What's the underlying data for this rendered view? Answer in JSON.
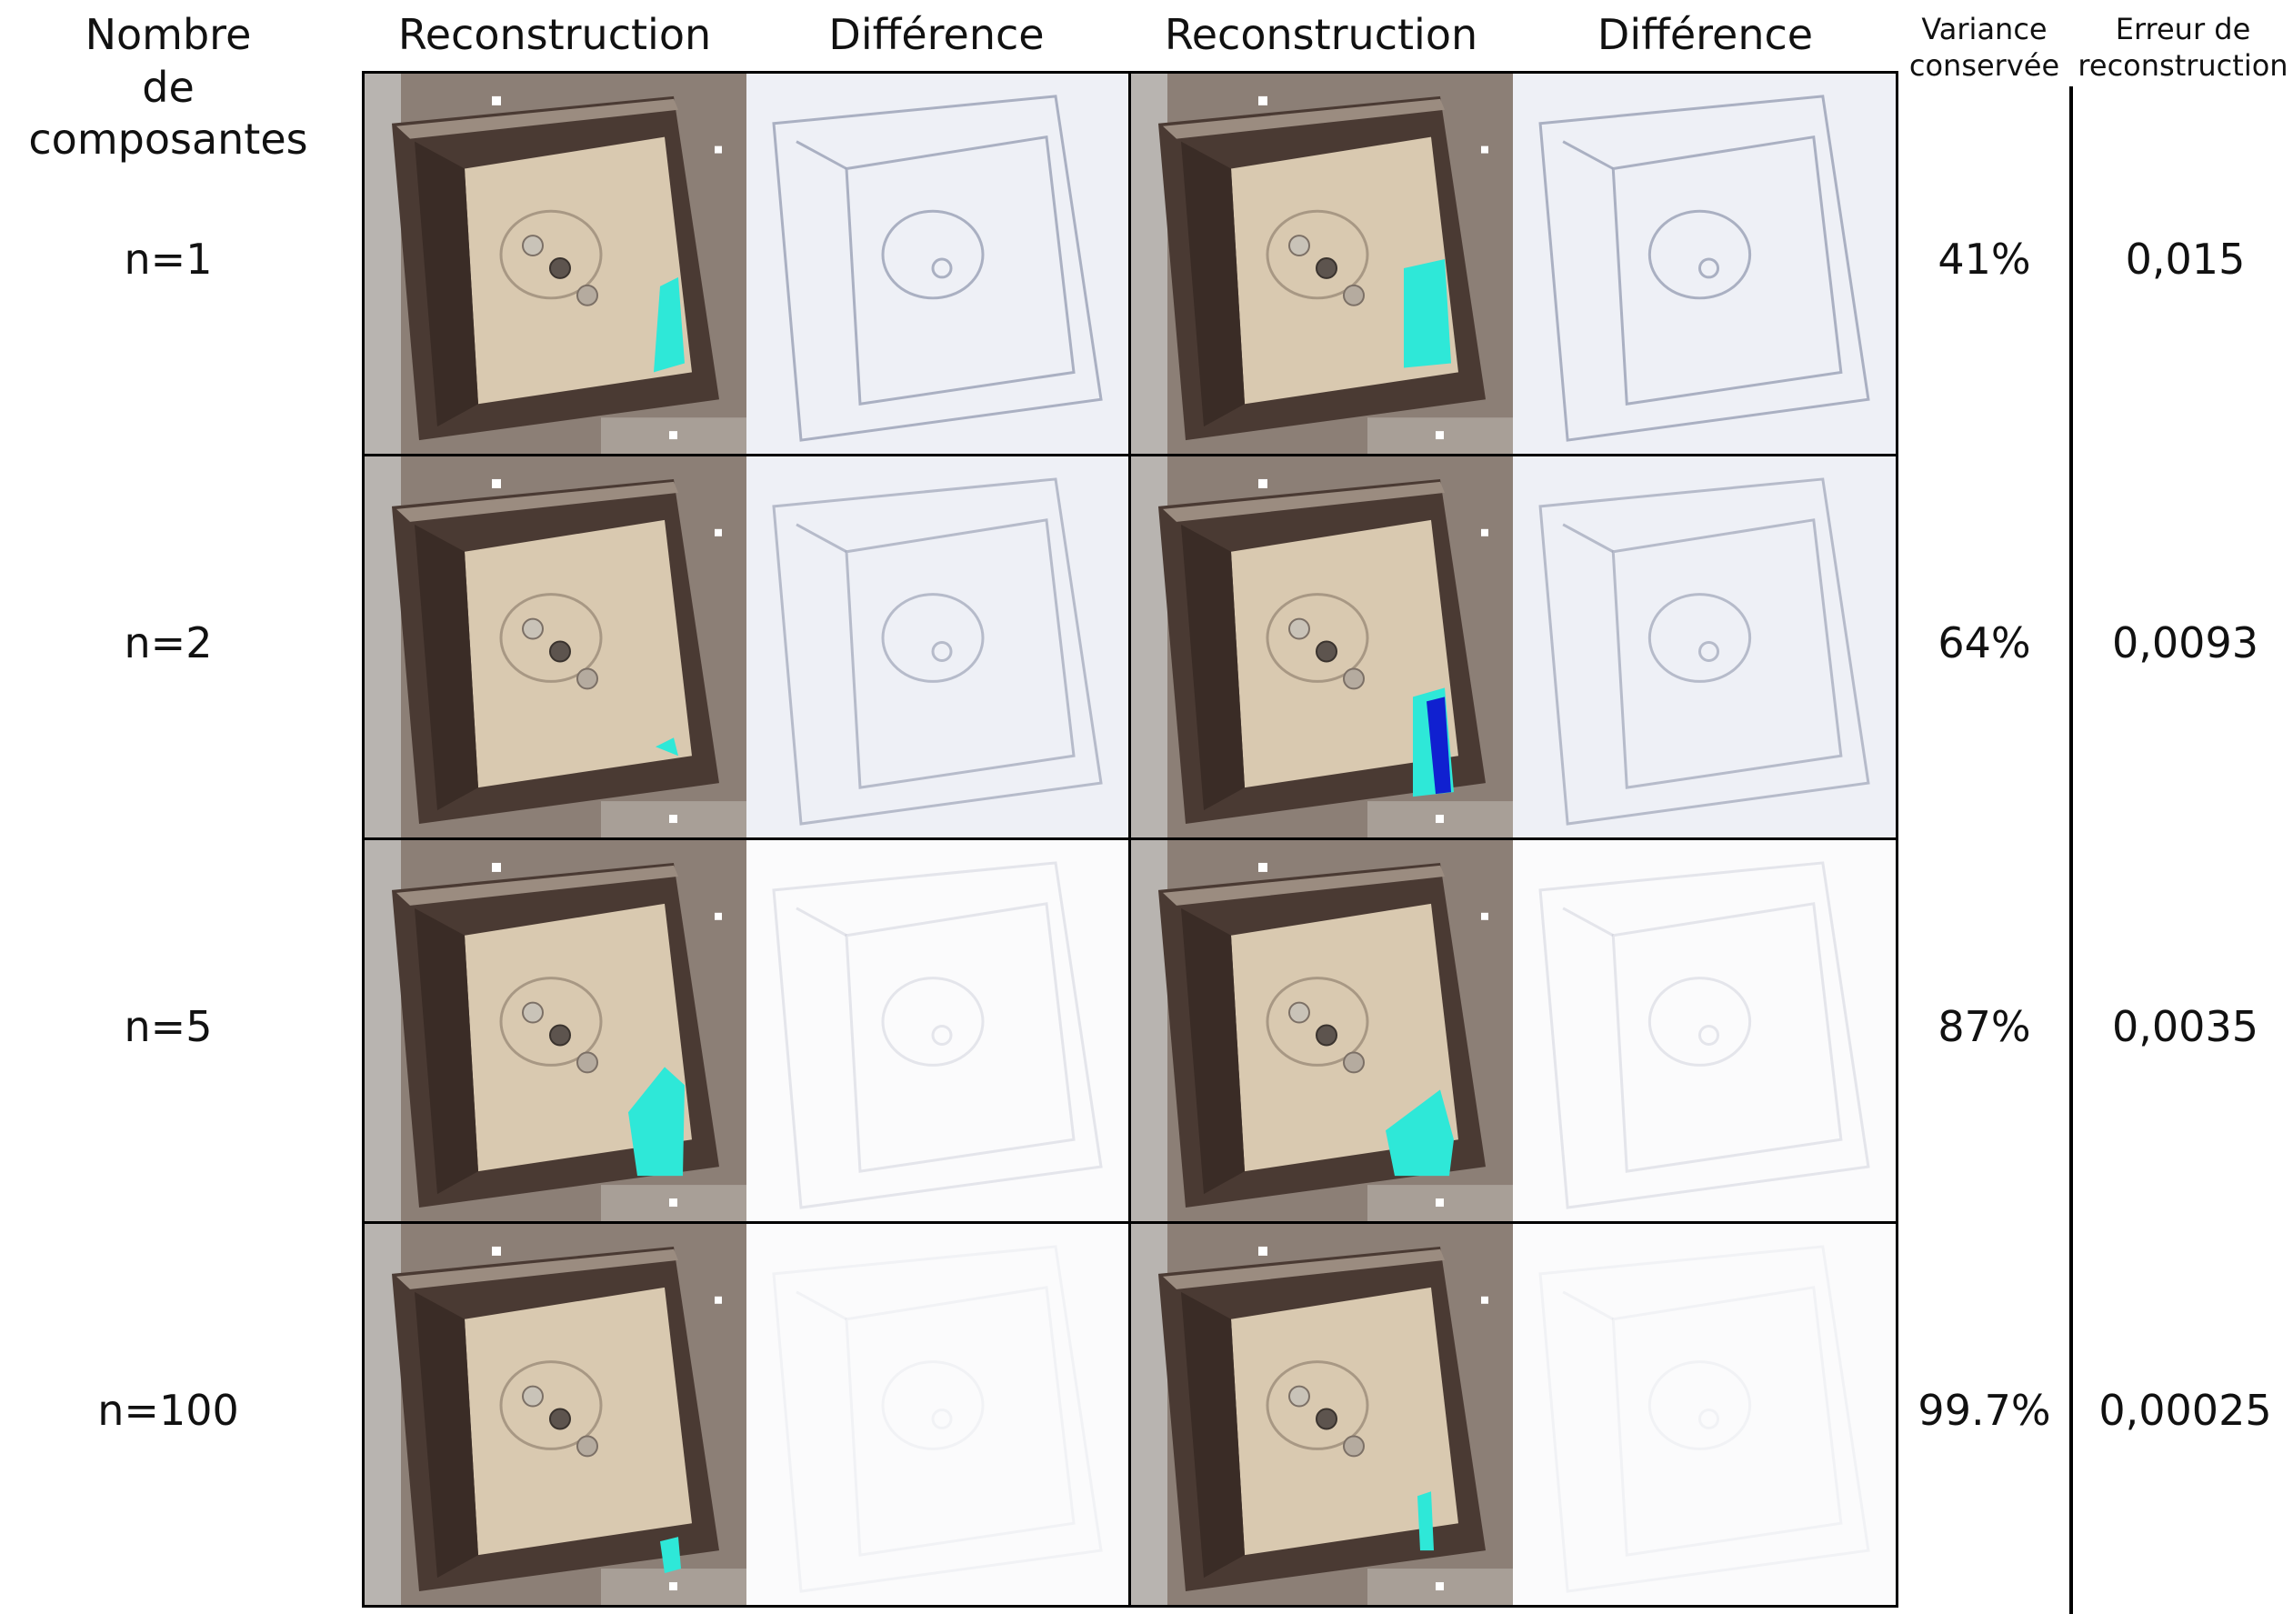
{
  "header": {
    "components": "Nombre\nde composantes",
    "reconstruction_1": "Reconstruction",
    "difference_1": "Différence",
    "reconstruction_2": "Reconstruction",
    "difference_2": "Différence",
    "variance": "Variance\nconservée",
    "error": "Erreur de\nreconstruction"
  },
  "rows": [
    {
      "label": "n=1",
      "variance": "41%",
      "error": "0,015"
    },
    {
      "label": "n=2",
      "variance": "64%",
      "error": "0,0093"
    },
    {
      "label": "n=5",
      "variance": "87%",
      "error": "0,0035"
    },
    {
      "label": "n=100",
      "variance": "99.7%",
      "error": "0,00025"
    }
  ],
  "colors": {
    "frame": "#4a3a33",
    "floor": "#d9c9b0",
    "background": "#8c7f76",
    "artifact": "#2ee8d8",
    "artifact_dark": "#1020d0",
    "difference_bg": "#eef0f6"
  }
}
